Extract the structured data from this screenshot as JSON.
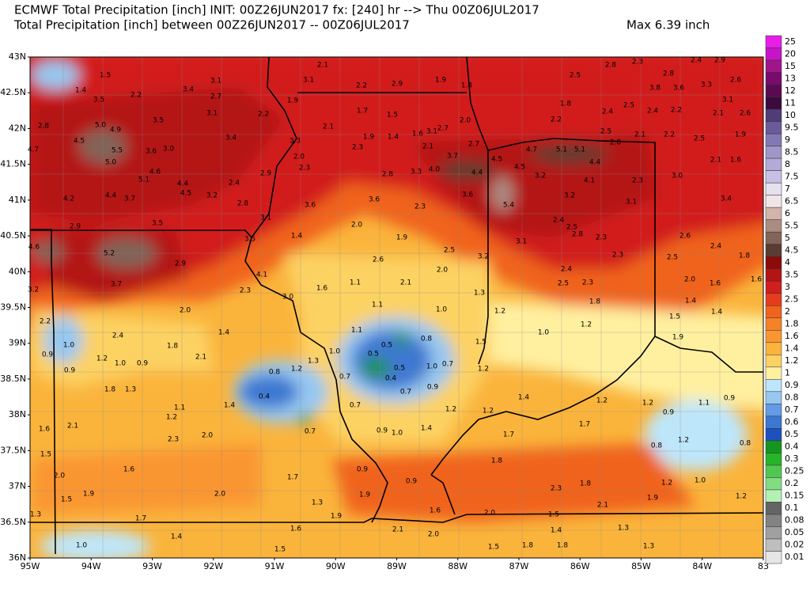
{
  "header": {
    "title": "ECMWF Total Precipitation [inch] INIT: 00Z26JUN2017 fx: [240] hr --> Thu 00Z06JUL2017",
    "subtitle": "Total Precipitation [inch] between 00Z26JUN2017 -- 00Z06JUL2017",
    "max": "Max 6.39 inch"
  },
  "map": {
    "lat_labels": [
      "43N",
      "42.5N",
      "42N",
      "41.5N",
      "41N",
      "40.5N",
      "40N",
      "39.5N",
      "39N",
      "38.5N",
      "38N",
      "37.5N",
      "37N",
      "36.5N",
      "36N"
    ],
    "lon_labels": [
      "95W",
      "94W",
      "93W",
      "92W",
      "91W",
      "90W",
      "89W",
      "88W",
      "87W",
      "86W",
      "85W",
      "84W",
      "83"
    ],
    "labels": [
      "2.1",
      "1.5",
      "3.1",
      "3.1",
      "2.2",
      "2.9",
      "1.9",
      "1.4",
      "2.5",
      "2.8",
      "2.3",
      "2.4",
      "2.9",
      "2.8",
      "1.4",
      "3.4",
      "2.7",
      "2.2",
      "3.5",
      "1.9",
      "3.8",
      "3.6",
      "3.3",
      "2.6",
      "3.1",
      "1.8",
      "2.8",
      "5.0",
      "4.9",
      "3.5",
      "3.1",
      "2.2",
      "1.7",
      "1.5",
      "2.0",
      "2.2",
      "2.4",
      "2.5",
      "2.4",
      "2.2",
      "2.1",
      "2.6",
      "4.5",
      "5.5",
      "3.6",
      "3.0",
      "3.4",
      "3.3",
      "2.1",
      "1.9",
      "1.4",
      "1.6",
      "3.1",
      "2.7",
      "2.7",
      "2.5",
      "2.1",
      "2.2",
      "2.5",
      "4.7",
      "5.0",
      "2.3",
      "2.1",
      "2.0",
      "2.8",
      "4.7",
      "5.1",
      "5.1",
      "1.9",
      "2.1",
      "1.6",
      "4.6",
      "5.1",
      "4.4",
      "2.3",
      "2.9",
      "3.7",
      "4.0",
      "3.3",
      "2.8",
      "4.4",
      "4.5",
      "4.5",
      "4.4",
      "3.2",
      "4.1",
      "2.3",
      "3.0",
      "2.4",
      "4.5",
      "3.2",
      "4.2",
      "4.4",
      "3.7",
      "3.6",
      "3.6",
      "5.4",
      "3.2",
      "3.1",
      "2.8",
      "3.6",
      "2.3",
      "3.4",
      "3.1",
      "2.9",
      "3.5",
      "2.4",
      "2.5",
      "2.8",
      "2.0",
      "1.4",
      "3.5",
      "1.9",
      "2.3",
      "2.6",
      "2.4",
      "4.6",
      "5.2",
      "3.1",
      "2.5",
      "2.6",
      "3.2",
      "2.3",
      "2.5",
      "1.8",
      "2.9",
      "4.1",
      "2.0",
      "2.4",
      "1.6",
      "3.7",
      "1.1",
      "2.1",
      "2.5",
      "2.3",
      "2.0",
      "1.6",
      "3.2",
      "2.3",
      "1.6",
      "1.3",
      "3.0",
      "1.1",
      "1.0",
      "1.8",
      "1.4",
      "1.4",
      "2.0",
      "1.2",
      "2.2",
      "1.5",
      "1.2",
      "1.4",
      "1.1",
      "0.8",
      "1.0",
      "2.4",
      "1.5",
      "1.0",
      "0.5",
      "1.9",
      "1.8",
      "0.9",
      "1.2",
      "1.0",
      "0.9",
      "2.1",
      "1.0",
      "0.5",
      "1.3",
      "1.2",
      "0.8",
      "0.5",
      "1.0",
      "0.7",
      "1.2",
      "0.9",
      "0.7",
      "0.4",
      "0.9",
      "0.7",
      "1.8",
      "1.3",
      "0.4",
      "1.4",
      "1.2",
      "1.1",
      "1.4",
      "1.2",
      "0.7",
      "1.2",
      "1.2",
      "1.2",
      "0.9",
      "0.9",
      "1.1",
      "2.1",
      "1.4",
      "0.9",
      "1.0",
      "0.7",
      "1.7",
      "1.7",
      "2.0",
      "2.3",
      "1.6",
      "1.2",
      "0.8",
      "0.8",
      "1.5",
      "1.8",
      "1.6",
      "0.9",
      "0.9",
      "1.7",
      "2.0",
      "2.3",
      "1.8",
      "1.2",
      "1.0",
      "1.9",
      "2.0",
      "1.9",
      "1.5",
      "1.3",
      "2.1",
      "1.9",
      "1.2",
      "1.6",
      "2.0",
      "1.5",
      "1.3",
      "1.7",
      "1.9",
      "1.6",
      "1.4",
      "1.3",
      "1.4",
      "2.1",
      "2.0",
      "1.5",
      "1.8",
      "1.8",
      "1.5",
      "1.0",
      "1.3"
    ]
  },
  "colorbar": [
    {
      "label": "25",
      "color": "#e81ee8"
    },
    {
      "label": "20",
      "color": "#c814c8"
    },
    {
      "label": "15",
      "color": "#a0148c"
    },
    {
      "label": "13",
      "color": "#7a0a6e"
    },
    {
      "label": "12",
      "color": "#5a0a50"
    },
    {
      "label": "11",
      "color": "#3c0a3c"
    },
    {
      "label": "10",
      "color": "#503c78"
    },
    {
      "label": "9.5",
      "color": "#6a5a9a"
    },
    {
      "label": "9",
      "color": "#8478b4"
    },
    {
      "label": "8.5",
      "color": "#a096c8"
    },
    {
      "label": "8",
      "color": "#b4aad8"
    },
    {
      "label": "7.5",
      "color": "#c8c0e4"
    },
    {
      "label": "7",
      "color": "#e6e0f0"
    },
    {
      "label": "6.5",
      "color": "#f0e6e6"
    },
    {
      "label": "6",
      "color": "#d2b4aa"
    },
    {
      "label": "5.5",
      "color": "#aa8c82"
    },
    {
      "label": "5",
      "color": "#826458"
    },
    {
      "label": "4.5",
      "color": "#5a3c32"
    },
    {
      "label": "4",
      "color": "#8c0a0a"
    },
    {
      "label": "3.5",
      "color": "#b41414"
    },
    {
      "label": "3",
      "color": "#d21e1e"
    },
    {
      "label": "2.5",
      "color": "#e63c1e"
    },
    {
      "label": "2",
      "color": "#f0641e"
    },
    {
      "label": "1.8",
      "color": "#f58228"
    },
    {
      "label": "1.6",
      "color": "#fa9632"
    },
    {
      "label": "1.4",
      "color": "#fab43c"
    },
    {
      "label": "1.2",
      "color": "#fcd264"
    },
    {
      "label": "1",
      "color": "#fff0a0"
    },
    {
      "label": "0.9",
      "color": "#bee6fa"
    },
    {
      "label": "0.8",
      "color": "#96c8f0"
    },
    {
      "label": "0.7",
      "color": "#649be6"
    },
    {
      "label": "0.6",
      "color": "#3c78d2"
    },
    {
      "label": "0.5",
      "color": "#1e50be"
    },
    {
      "label": "0.4",
      "color": "#14961e"
    },
    {
      "label": "0.3",
      "color": "#28b428"
    },
    {
      "label": "0.25",
      "color": "#50c850"
    },
    {
      "label": "0.2",
      "color": "#82dc82"
    },
    {
      "label": "0.15",
      "color": "#b4f0b4"
    },
    {
      "label": "0.1",
      "color": "#646464"
    },
    {
      "label": "0.08",
      "color": "#828282"
    },
    {
      "label": "0.05",
      "color": "#a0a0a0"
    },
    {
      "label": "0.02",
      "color": "#bebebe"
    },
    {
      "label": "0.01",
      "color": "#e6e6e6"
    }
  ]
}
